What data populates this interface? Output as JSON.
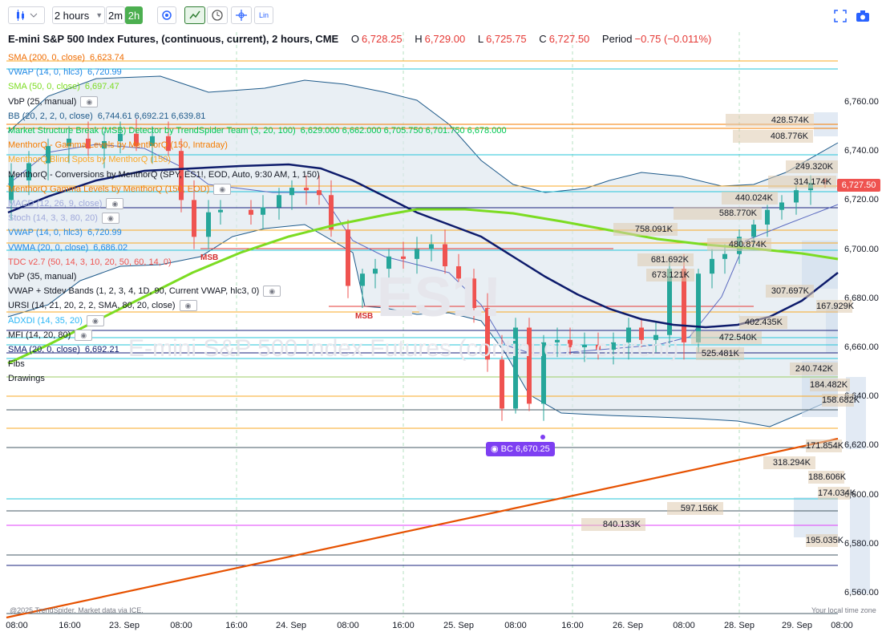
{
  "toolbar": {
    "chart_type_icon": "candles-icon",
    "interval": "2 hours",
    "interval_options": [
      "2m",
      "2h"
    ],
    "tools": [
      "settings-icon",
      "crosshair-icon",
      "clock-icon",
      "cursor-icon",
      "log-scale-icon"
    ],
    "log_label": "Lin",
    "right_tools": [
      "fullscreen-icon",
      "camera-icon"
    ]
  },
  "title": {
    "symbol": "E-mini S&P 500 Index Futures, (continuous, current), 2 hours, CME",
    "o_label": "O",
    "o": "6,728.25",
    "h_label": "H",
    "h": "6,729.00",
    "l_label": "L",
    "l": "6,725.75",
    "c_label": "C",
    "c": "6,727.50",
    "period_label": "Period",
    "period": "−0.75 (−0.011%)"
  },
  "indicators": [
    {
      "name": "SMA (200, 0, close)",
      "value": "6,623.74",
      "color": "#ef6c00"
    },
    {
      "name": "VWAP (14, 0, hlc3)",
      "value": "6,720.99",
      "color": "#1e88e5"
    },
    {
      "name": "SMA (50, 0, close)",
      "value": "6,697.47",
      "color": "#7cdc22"
    },
    {
      "name": "VbP (25, manual)",
      "value": "",
      "color": "#131722",
      "eye": true
    },
    {
      "name": "BB (20, 2, 2, 0, close)",
      "value": "6,744.61  6,692.21  6,639.81",
      "color": "#1e5a8a"
    },
    {
      "name": "Market Structure Break (MSB) Detector by TrendSpider Team (3, 20, 100)",
      "value": "6,629.000  6,662.000  6,705.750  6,701.750  6,678.000",
      "color": "#00c853"
    },
    {
      "name": "MenthorQ - Gamma Levels by MenthorQ (150, Intraday)",
      "value": "",
      "color": "#f57c00"
    },
    {
      "name": "MenthorQ Blind Spots by MenthorQ (150)",
      "value": "",
      "color": "#f9a825"
    },
    {
      "name": "MenthorQ - Conversions by MenthorQ (SPY, ES1!, EOD, Auto, 9:30 AM, 1, 150)",
      "value": "",
      "color": "#131722"
    },
    {
      "name": "MenthorQ Gamma Levels by MenthorQ (150, EOD)",
      "value": "",
      "color": "#f57c00",
      "eye": true
    },
    {
      "name": "MACD (12, 26, 9, close)",
      "value": "",
      "color": "#9fa8da",
      "eye": true
    },
    {
      "name": "Stoch (14, 3, 3, 80, 20)",
      "value": "",
      "color": "#9fa8da",
      "eye": true
    },
    {
      "name": "VWAP (14, 0, hlc3)",
      "value": "6,720.99",
      "color": "#1e88e5"
    },
    {
      "name": "VWMA (20, 0, close)",
      "value": "6,686.02",
      "color": "#1e88e5"
    },
    {
      "name": "TDC v2.7 (50, 14, 3, 10, 20, 50, 60, 14, 0)",
      "value": "",
      "color": "#ef5350"
    },
    {
      "name": "VbP (35, manual)",
      "value": "",
      "color": "#131722"
    },
    {
      "name": "VWAP + Stdev Bands (1, 2, 3, 4, 1D, 90, Current VWAP, hlc3, 0)",
      "value": "",
      "color": "#131722",
      "eye": true
    },
    {
      "name": "URSI (14, 21, 20, 2, 2, SMA, 80, 20, close)",
      "value": "",
      "color": "#131722",
      "eye": true
    },
    {
      "name": "ADXDI (14, 35, 20)",
      "value": "",
      "color": "#29b6f6",
      "eye": true
    },
    {
      "name": "MFI (14, 20, 80)",
      "value": "",
      "color": "#131722",
      "eye": true
    },
    {
      "name": "SMA (20, 0, close)",
      "value": "6,692.21",
      "color": "#0d1b6b"
    },
    {
      "name": "Fibs",
      "value": "",
      "color": "#131722"
    },
    {
      "name": "Drawings",
      "value": "",
      "color": "#131722"
    }
  ],
  "watermark": {
    "symbol": "ES1!",
    "name": "E-mini S&P 500 Index Futures (continuous, current)"
  },
  "x_axis": {
    "labels": [
      "08:00",
      "16:00",
      "23. Sep",
      "08:00",
      "16:00",
      "24. Sep",
      "08:00",
      "16:00",
      "25. Sep",
      "08:00",
      "16:00",
      "26. Sep",
      "08:00",
      "28. Sep",
      "29. Sep",
      "08:00"
    ]
  },
  "y_axis": {
    "labels": [
      "6,760.00",
      "6,740.00",
      "6,720.00",
      "6,700.00",
      "6,680.00",
      "6,660.00",
      "6,640.00",
      "6,620.00",
      "6,600.00",
      "6,580.00",
      "6,560.00"
    ]
  },
  "current_price": "6,727.50",
  "bc_label": "BC 6,670.25",
  "msb_labels": [
    "MSB",
    "MSB"
  ],
  "volume_labels": [
    "428.574K",
    "408.776K",
    "249.320K",
    "314.174K",
    "440.024K",
    "588.770K",
    "758.091K",
    "480.874K",
    "681.692K",
    "673.121K",
    "307.697K",
    "167.929K",
    "402.435K",
    "472.540K",
    "525.481K",
    "240.742K",
    "184.482K",
    "158.682K",
    "171.854K",
    "318.294K",
    "188.606K",
    "174.034K",
    "597.156K",
    "840.133K",
    "195.035K"
  ],
  "credit": "@2025 TrendSpider. Market data via ICE.",
  "timezone": "Your local time zone",
  "colors": {
    "up": "#26a69a",
    "down": "#ef5350",
    "sma50": "#7cdc22",
    "sma20": "#0d1b6b",
    "sma200": "#e65100",
    "bb": "#1e5a8a",
    "vwap": "#1e88e5",
    "bb_fill": "#dde6ee"
  }
}
